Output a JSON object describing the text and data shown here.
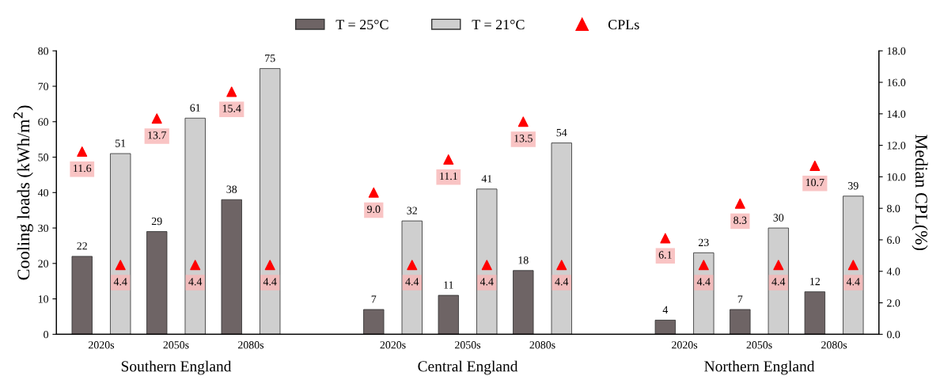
{
  "chart_data": {
    "type": "bar",
    "categories": [
      "2020s",
      "2050s",
      "2080s",
      "2020s",
      "2050s",
      "2080s",
      "2020s",
      "2050s",
      "2080s"
    ],
    "series": [
      {
        "name": "T = 25°C",
        "color": "#6e6465",
        "values": [
          22,
          29,
          38,
          7,
          11,
          18,
          4,
          7,
          12
        ],
        "value_labels": [
          "22",
          "29",
          "38",
          "7",
          "11",
          "18",
          "4",
          "7",
          "12"
        ]
      },
      {
        "name": "T = 21°C",
        "color": "#cfcfcf",
        "values": [
          51,
          61,
          75,
          32,
          41,
          54,
          23,
          30,
          39
        ],
        "value_labels": [
          "51",
          "61",
          "75",
          "32",
          "41",
          "54",
          "23",
          "30",
          "39"
        ]
      },
      {
        "name": "CPLs",
        "type": "scatter",
        "axis": "y2",
        "color": "#ff0000",
        "values": [
          11.6,
          13.7,
          15.4,
          9.0,
          11.1,
          13.5,
          6.1,
          8.3,
          10.7
        ],
        "value_labels": [
          "11.6",
          "13.7",
          "15.4",
          "9.0",
          "11.1",
          "13.5",
          "6.1",
          "8.3",
          "10.7"
        ]
      },
      {
        "type": "scatter",
        "axis": "y2",
        "color": "#ff0000",
        "values": [
          4.4,
          4.4,
          4.4,
          4.4,
          4.4,
          4.4,
          4.4,
          4.4,
          4.4
        ],
        "value_labels": [
          "4.4",
          "4.4",
          "4.4",
          "4.4",
          "4.4",
          "4.4",
          "4.4",
          "4.4",
          "4.4"
        ]
      }
    ],
    "ylabel": "Cooling loads (kWh/m$^{2}$)",
    "y2label": "Median CPL(%)",
    "ylim": [
      0,
      80
    ],
    "yticks": [
      0,
      10,
      20,
      30,
      40,
      50,
      60,
      70,
      80
    ],
    "y2lim": [
      0,
      18
    ],
    "y2ticks": [
      {
        "value": 0,
        "label": "0.0"
      },
      {
        "value": 2,
        "label": "2.0"
      },
      {
        "value": 4,
        "label": "4.0"
      },
      {
        "value": 6,
        "label": "6.0"
      },
      {
        "value": 8,
        "label": "8.0"
      },
      {
        "value": 10,
        "label": "10.0"
      },
      {
        "value": 12,
        "label": "12.0"
      },
      {
        "value": 14,
        "label": "14.0"
      },
      {
        "value": 16,
        "label": "16.0"
      },
      {
        "value": 18,
        "label": "18.0"
      }
    ],
    "marker": "triangle",
    "legend": "top",
    "grid": false,
    "annotations": [
      "Southern England",
      "Central England",
      "Northern England"
    ]
  }
}
